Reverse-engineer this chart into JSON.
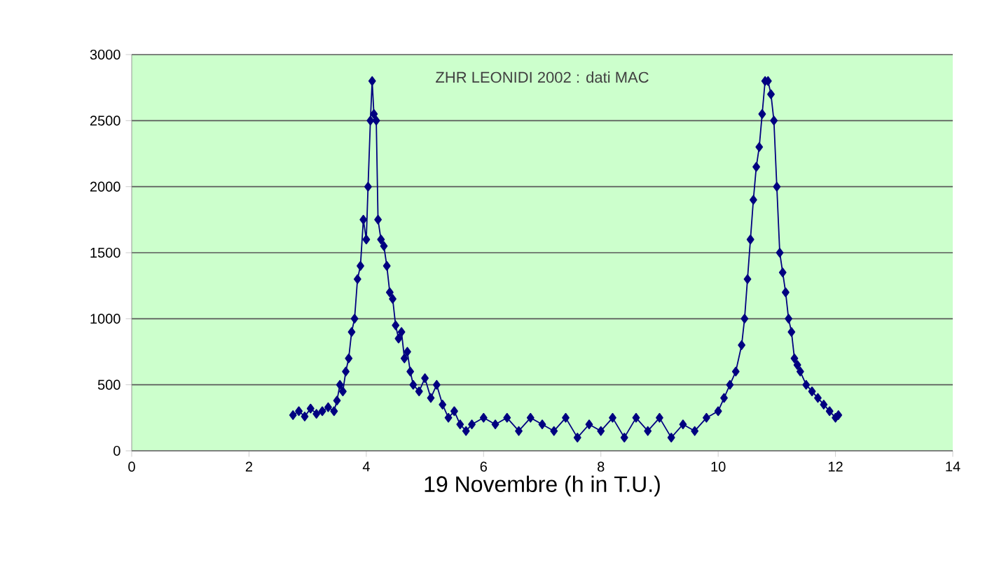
{
  "chart_data": {
    "type": "line",
    "title": "ZHR LEONIDI 2002 : dati MAC",
    "xlabel": "19 Novembre (h in T.U.)",
    "x": [
      2.75,
      2.85,
      2.95,
      3.05,
      3.15,
      3.25,
      3.35,
      3.45,
      3.5,
      3.55,
      3.6,
      3.65,
      3.7,
      3.75,
      3.8,
      3.85,
      3.9,
      3.95,
      4.0,
      4.03,
      4.07,
      4.1,
      4.13,
      4.17,
      4.2,
      4.25,
      4.3,
      4.35,
      4.4,
      4.45,
      4.5,
      4.55,
      4.6,
      4.65,
      4.7,
      4.75,
      4.8,
      4.9,
      5.0,
      5.1,
      5.2,
      5.3,
      5.4,
      5.5,
      5.6,
      5.7,
      5.8,
      6.0,
      6.2,
      6.4,
      6.6,
      6.8,
      7.0,
      7.2,
      7.4,
      7.6,
      7.8,
      8.0,
      8.2,
      8.4,
      8.6,
      8.8,
      9.0,
      9.2,
      9.4,
      9.6,
      9.8,
      10.0,
      10.1,
      10.2,
      10.3,
      10.4,
      10.45,
      10.5,
      10.55,
      10.6,
      10.65,
      10.7,
      10.75,
      10.8,
      10.85,
      10.9,
      10.95,
      11.0,
      11.05,
      11.1,
      11.15,
      11.2,
      11.25,
      11.3,
      11.35,
      11.4,
      11.5,
      11.6,
      11.7,
      11.8,
      11.9,
      12.0,
      12.05
    ],
    "series": [
      {
        "color": "#000080",
        "values": [
          270,
          300,
          260,
          320,
          280,
          300,
          330,
          300,
          380,
          500,
          450,
          600,
          700,
          900,
          1000,
          1300,
          1400,
          1750,
          1600,
          2000,
          2500,
          2800,
          2550,
          2500,
          1750,
          1600,
          1550,
          1400,
          1200,
          1150,
          950,
          850,
          900,
          700,
          750,
          600,
          500,
          450,
          550,
          400,
          500,
          350,
          250,
          300,
          200,
          150,
          200,
          250,
          200,
          250,
          150,
          250,
          200,
          150,
          250,
          100,
          200,
          150,
          250,
          100,
          250,
          150,
          250,
          100,
          200,
          150,
          250,
          300,
          400,
          500,
          600,
          800,
          1000,
          1300,
          1600,
          1900,
          2150,
          2300,
          2550,
          2800,
          2800,
          2700,
          2500,
          2000,
          1500,
          1350,
          1200,
          1000,
          900,
          700,
          650,
          600,
          500,
          450,
          400,
          350,
          300,
          250,
          270
        ]
      }
    ],
    "xlim": [
      0,
      14
    ],
    "xticks": [
      0,
      2,
      4,
      6,
      8,
      10,
      12,
      14
    ],
    "ylim": [
      0,
      3000
    ],
    "yticks": [
      0,
      500,
      1000,
      1500,
      2000,
      2500,
      3000
    ],
    "grid": "y",
    "marker": "diamond",
    "line_style": "solid"
  }
}
